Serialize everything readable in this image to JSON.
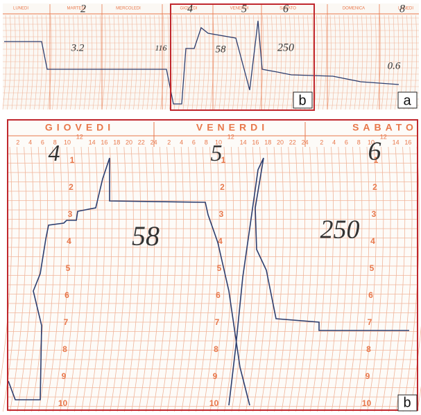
{
  "panel_a": {
    "days": [
      "LUNEDI",
      "MARTEDI",
      "MERCOLEDI",
      "GIOVEDI",
      "VENERDI",
      "SABATO",
      "DOMENICA",
      "LUNEDI"
    ],
    "handwriting": [
      "2",
      "3.2",
      "116",
      "4",
      "5",
      "6",
      "58",
      "250",
      "8",
      "0.6"
    ],
    "label": "a",
    "inset_label": "b"
  },
  "panel_b": {
    "days": [
      "GIOVEDI",
      "VENERDI",
      "SABATO"
    ],
    "hours": [
      "2",
      "4",
      "6",
      "8",
      "10",
      "12",
      "14",
      "16",
      "18",
      "20",
      "22",
      "24"
    ],
    "scale": [
      "1",
      "2",
      "3",
      "4",
      "5",
      "6",
      "7",
      "8",
      "9",
      "10"
    ],
    "handwriting": [
      "4",
      "5",
      "6",
      "58",
      "250"
    ],
    "label": "b"
  }
}
